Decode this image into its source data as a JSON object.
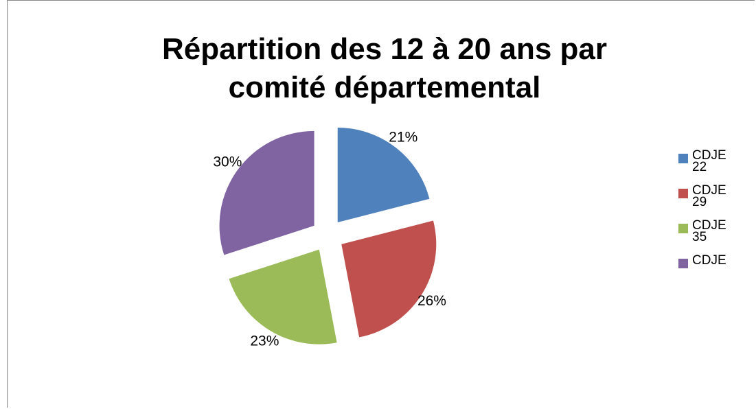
{
  "chart_data": {
    "type": "pie",
    "title": "Répartition des 12 à 20 ans par comité départemental",
    "categories": [
      "CDJE 22",
      "CDJE 29",
      "CDJE 35",
      "CDJE"
    ],
    "values": [
      21,
      26,
      23,
      30
    ],
    "value_labels": [
      "21%",
      "26%",
      "23%",
      "30%"
    ],
    "colors": [
      "#4f81bd",
      "#c0504d",
      "#9bbb59",
      "#8064a2"
    ],
    "legend": "right"
  }
}
